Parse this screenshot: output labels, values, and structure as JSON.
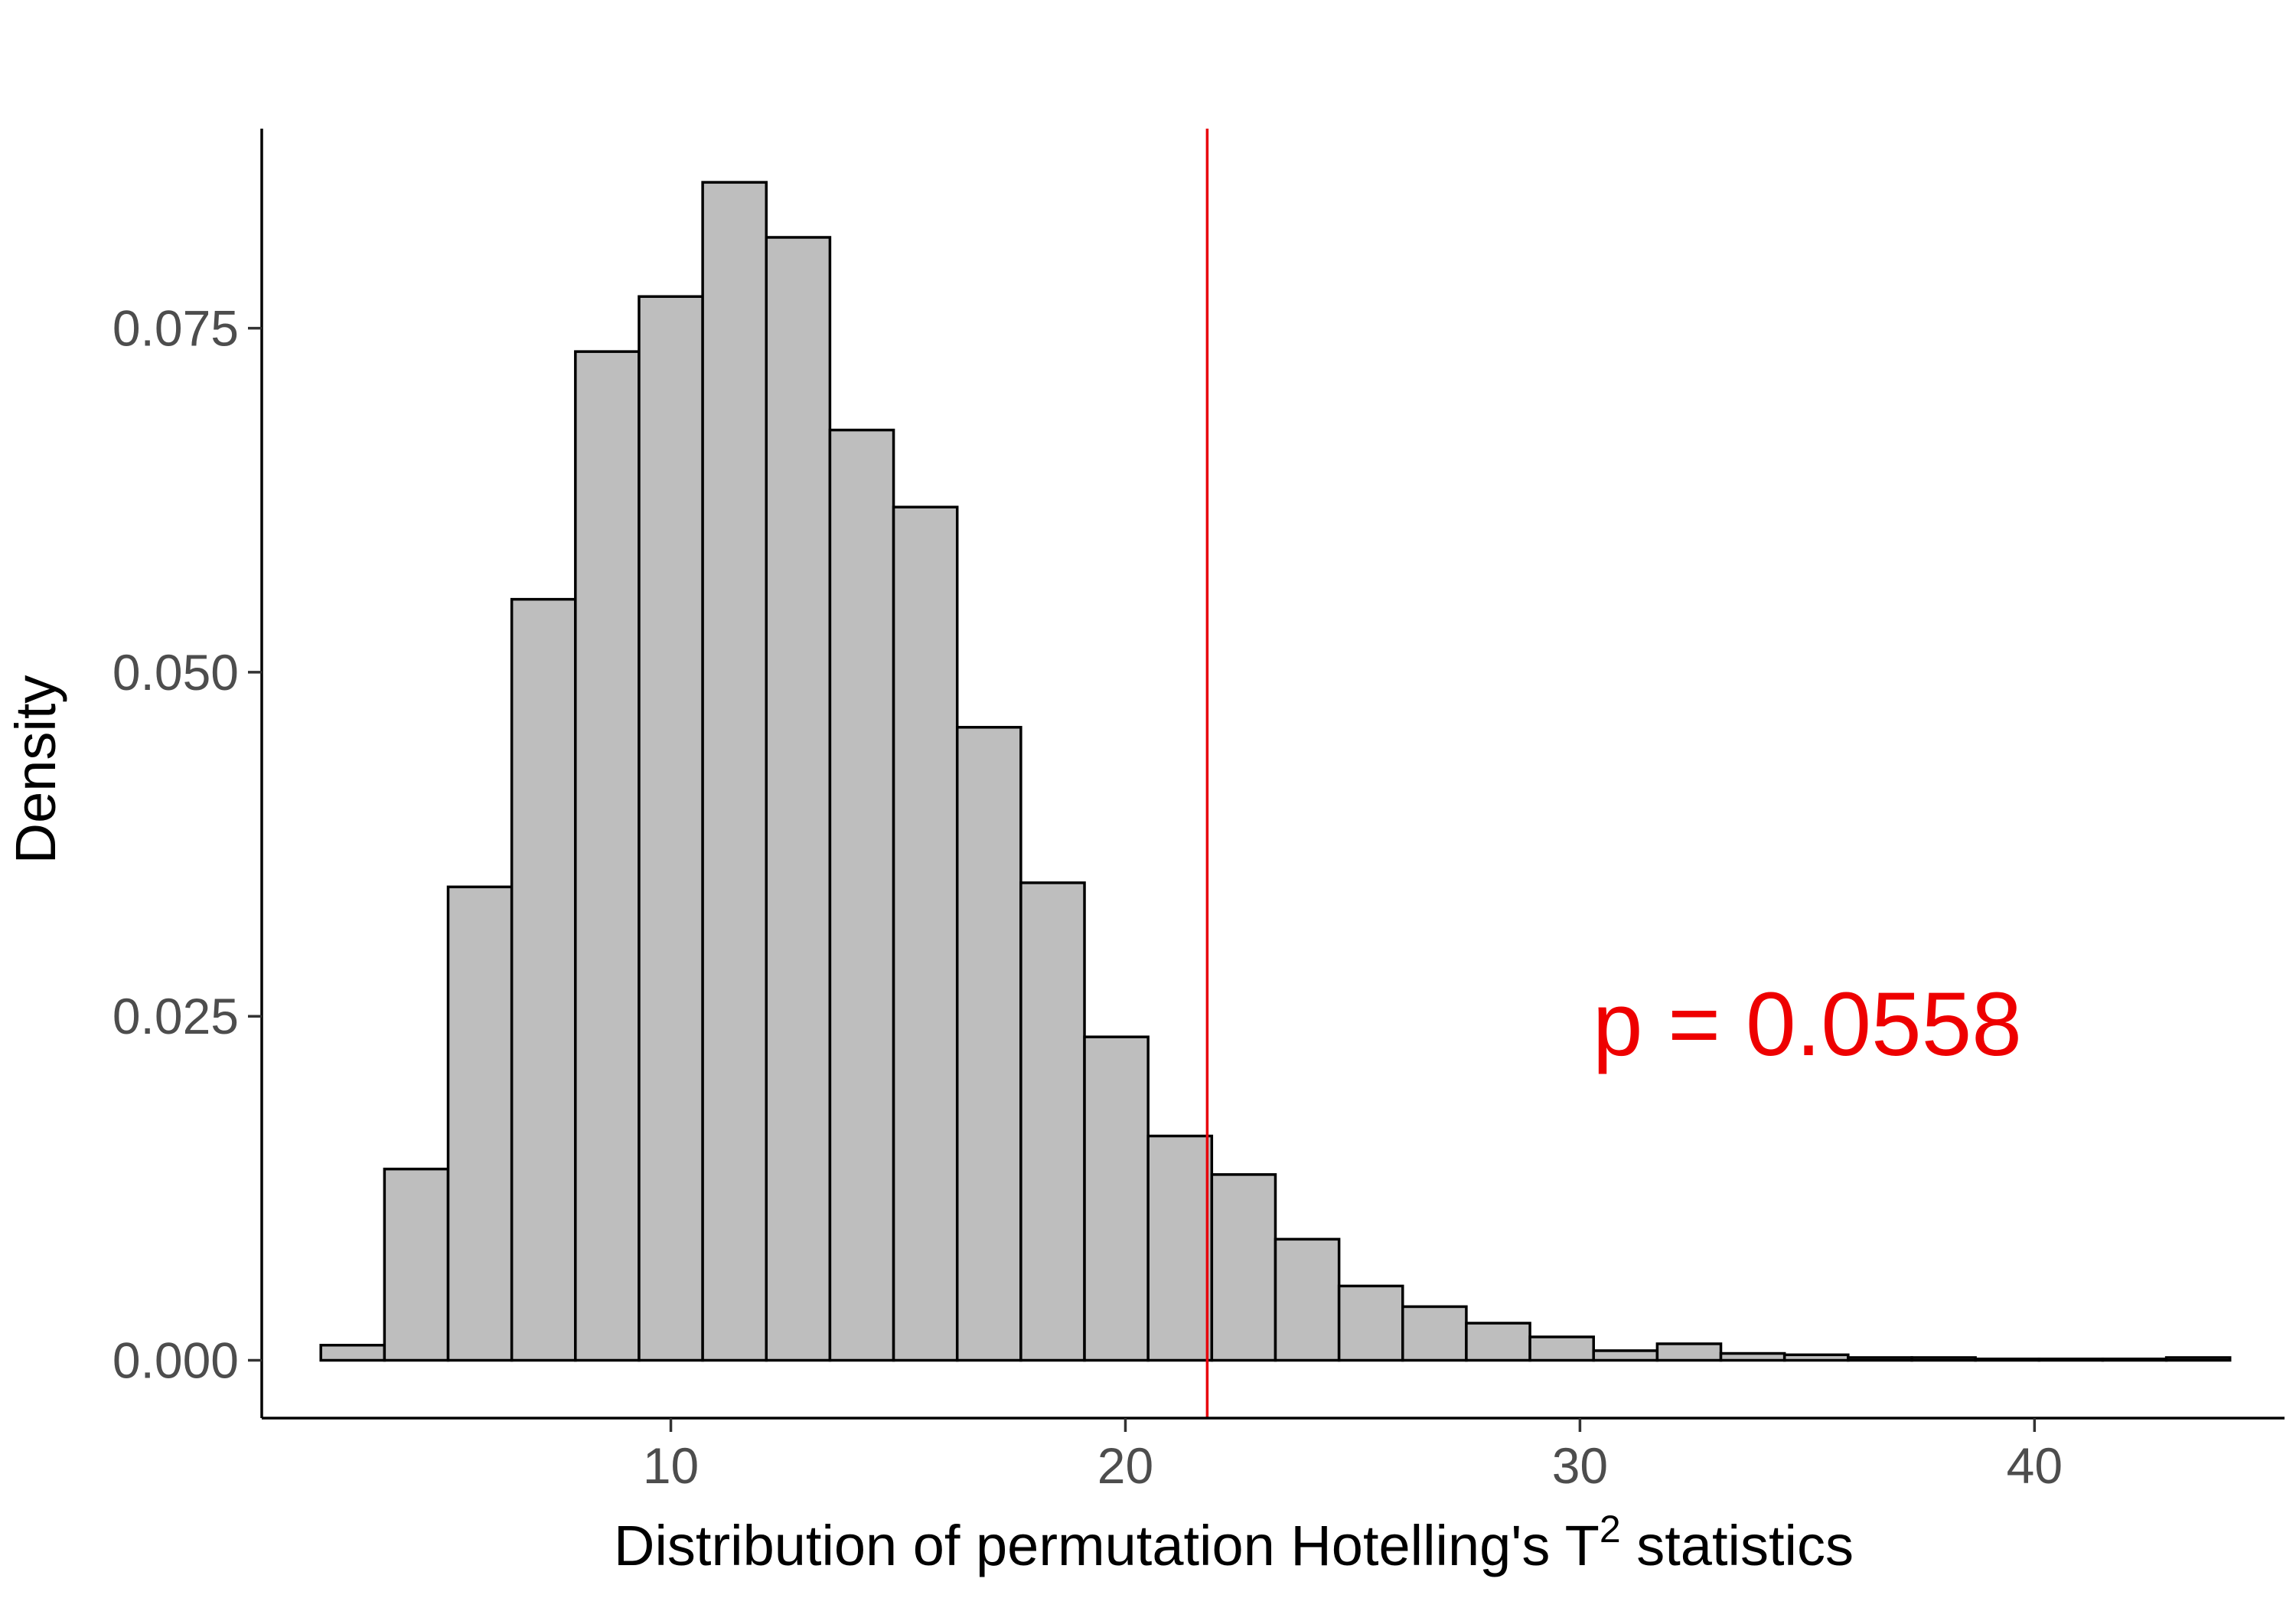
{
  "chart_data": {
    "type": "histogram",
    "xlabel": "Distribution of permutation Hotelling's T",
    "xlabel_superscript": "2",
    "xlabel_suffix": " statistics",
    "ylabel": "Density",
    "xlim": [
      1.0,
      45.5
    ],
    "ylim": [
      -0.0042,
      0.0895
    ],
    "x_ticks": [
      10,
      20,
      30,
      40
    ],
    "x_tick_labels": [
      "10",
      "20",
      "30",
      "40"
    ],
    "y_ticks": [
      0.0,
      0.025,
      0.05,
      0.075
    ],
    "y_tick_labels": [
      "0.000",
      "0.025",
      "0.050",
      "0.075"
    ],
    "bin_width": 1.4,
    "bins": [
      {
        "start": 2.3,
        "density": 0.0011
      },
      {
        "start": 3.7,
        "density": 0.0139
      },
      {
        "start": 5.1,
        "density": 0.0344
      },
      {
        "start": 6.5,
        "density": 0.0553
      },
      {
        "start": 7.9,
        "density": 0.0733
      },
      {
        "start": 9.3,
        "density": 0.0773
      },
      {
        "start": 10.7,
        "density": 0.0856
      },
      {
        "start": 12.1,
        "density": 0.0816
      },
      {
        "start": 13.5,
        "density": 0.0676
      },
      {
        "start": 14.9,
        "density": 0.062
      },
      {
        "start": 16.3,
        "density": 0.046
      },
      {
        "start": 17.7,
        "density": 0.0347
      },
      {
        "start": 19.1,
        "density": 0.0235
      },
      {
        "start": 20.5,
        "density": 0.0163
      },
      {
        "start": 21.9,
        "density": 0.0135
      },
      {
        "start": 23.3,
        "density": 0.0088
      },
      {
        "start": 24.7,
        "density": 0.0054
      },
      {
        "start": 26.1,
        "density": 0.0039
      },
      {
        "start": 27.5,
        "density": 0.0027
      },
      {
        "start": 28.9,
        "density": 0.0017
      },
      {
        "start": 30.3,
        "density": 0.0007
      },
      {
        "start": 31.7,
        "density": 0.0012
      },
      {
        "start": 33.1,
        "density": 0.0005
      },
      {
        "start": 34.5,
        "density": 0.0004
      },
      {
        "start": 35.9,
        "density": 0.0002
      },
      {
        "start": 37.3,
        "density": 0.0002
      },
      {
        "start": 38.7,
        "density": 0.0001
      },
      {
        "start": 40.1,
        "density": 0.0001
      },
      {
        "start": 41.5,
        "density": 0.0001
      },
      {
        "start": 42.9,
        "density": 0.0002
      }
    ],
    "observed_statistic": 21.8,
    "observed_line_color": "#e8000b",
    "bar_fill": "#bebebe",
    "bar_stroke": "#000000",
    "annotation": {
      "text": "p = 0.0558",
      "x": 35,
      "y": 0.0245,
      "color": "#ee0000"
    }
  }
}
